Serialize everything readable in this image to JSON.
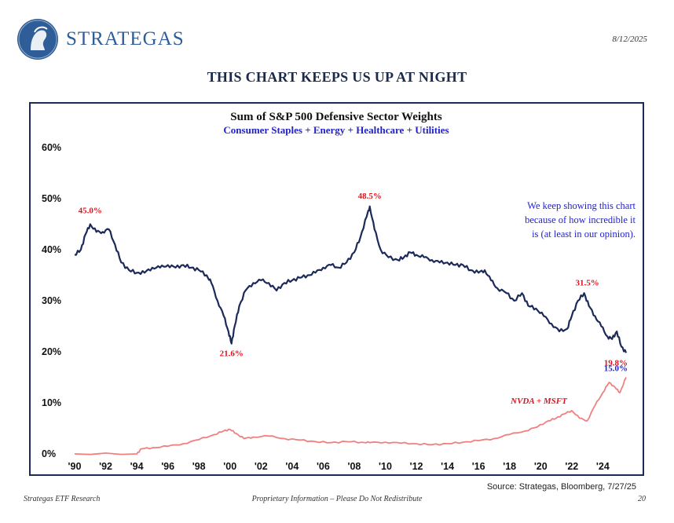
{
  "header": {
    "brand": "STRATEGAS",
    "date": "8/12/2025",
    "headline": "THIS CHART KEEPS US UP AT NIGHT"
  },
  "footer": {
    "source": "Source: Strategas, Bloomberg, 7/27/25",
    "left": "Strategas ETF Research",
    "center": "Proprietary Information – Please Do Not Redistribute",
    "page": "20"
  },
  "colors": {
    "defensive": "#1b2a59",
    "nvda_msft": "#f08080",
    "accent_red": "#e0141e",
    "accent_blue": "#2222cc",
    "brand": "#2f5d97"
  },
  "chart_data": {
    "type": "line",
    "title": "Sum of S&P 500 Defensive Sector Weights",
    "subtitle": "Consumer Staples + Energy + Healthcare + Utilities",
    "ylim": [
      0,
      60
    ],
    "xlim": [
      1990,
      2025.6
    ],
    "y_ticks": [
      "0%",
      "10%",
      "20%",
      "30%",
      "40%",
      "50%",
      "60%"
    ],
    "x_ticks": [
      "'90",
      "'92",
      "'94",
      "'96",
      "'98",
      "'00",
      "'02",
      "'04",
      "'06",
      "'08",
      "'10",
      "'12",
      "'14",
      "'16",
      "'18",
      "'20",
      "'22",
      "'24"
    ],
    "grid": false,
    "series": [
      {
        "name": "Defensive Sectors",
        "x": [
          1990.0,
          1990.4,
          1990.7,
          1991.0,
          1991.4,
          1991.8,
          1992.2,
          1992.6,
          1993.0,
          1993.5,
          1994.0,
          1994.5,
          1995.0,
          1995.5,
          1996.0,
          1996.5,
          1997.0,
          1997.5,
          1998.0,
          1998.5,
          1998.8,
          1999.2,
          1999.6,
          1999.9,
          2000.1,
          2000.3,
          2000.6,
          2001.0,
          2001.5,
          2002.0,
          2002.5,
          2003.0,
          2003.5,
          2004.0,
          2004.5,
          2005.0,
          2005.5,
          2006.0,
          2006.5,
          2007.0,
          2007.5,
          2008.0,
          2008.4,
          2008.8,
          2009.0,
          2009.3,
          2009.7,
          2010.2,
          2010.8,
          2011.2,
          2011.6,
          2012.0,
          2012.5,
          2013.0,
          2013.5,
          2014.0,
          2014.5,
          2015.0,
          2015.5,
          2016.0,
          2016.4,
          2016.8,
          2017.2,
          2017.8,
          2018.3,
          2018.8,
          2019.2,
          2019.7,
          2020.2,
          2020.7,
          2021.2,
          2021.7,
          2022.0,
          2022.4,
          2022.8,
          2023.1,
          2023.5,
          2023.9,
          2024.3,
          2024.6,
          2024.9,
          2025.2,
          2025.5
        ],
        "values": [
          39.0,
          40.0,
          43.0,
          45.0,
          43.5,
          43.5,
          44.0,
          41.0,
          37.5,
          36.0,
          35.5,
          35.5,
          36.5,
          36.5,
          37.0,
          36.5,
          37.0,
          36.5,
          36.0,
          35.0,
          33.5,
          30.0,
          27.0,
          24.0,
          21.6,
          25.0,
          29.0,
          32.0,
          33.5,
          34.0,
          33.5,
          32.0,
          33.5,
          34.0,
          34.5,
          35.0,
          35.5,
          36.5,
          37.0,
          36.5,
          37.5,
          39.5,
          42.5,
          46.5,
          48.5,
          44.0,
          40.0,
          38.5,
          38.0,
          38.5,
          39.5,
          39.0,
          38.5,
          38.0,
          37.5,
          37.5,
          37.0,
          37.0,
          36.0,
          35.5,
          36.0,
          34.0,
          32.5,
          31.5,
          30.0,
          31.5,
          29.0,
          28.5,
          27.0,
          25.5,
          24.0,
          24.5,
          27.0,
          30.0,
          31.5,
          29.0,
          27.0,
          25.0,
          23.0,
          22.5,
          24.0,
          21.0,
          19.8
        ]
      },
      {
        "name": "NVDA + MSFT",
        "x": [
          1990.0,
          1994.0,
          1994.3,
          1995.0,
          1996.0,
          1997.0,
          1998.0,
          1999.0,
          1999.6,
          2000.0,
          2000.4,
          2000.9,
          2001.5,
          2002.5,
          2003.5,
          2004.5,
          2005.5,
          2006.5,
          2007.5,
          2008.5,
          2009.0,
          2010.0,
          2011.0,
          2012.0,
          2013.0,
          2014.0,
          2015.0,
          2016.0,
          2017.0,
          2018.0,
          2019.0,
          2019.8,
          2020.5,
          2021.0,
          2021.5,
          2022.0,
          2022.5,
          2023.0,
          2023.5,
          2024.0,
          2024.4,
          2024.8,
          2025.1,
          2025.5
        ],
        "values": [
          0.0,
          0.0,
          1.0,
          1.2,
          1.5,
          2.0,
          2.8,
          3.8,
          4.5,
          4.8,
          4.0,
          3.0,
          3.3,
          3.5,
          3.0,
          2.7,
          2.4,
          2.2,
          2.4,
          2.3,
          2.2,
          2.3,
          2.1,
          2.0,
          1.8,
          2.0,
          2.3,
          2.6,
          3.0,
          3.8,
          4.5,
          5.3,
          6.5,
          7.0,
          7.8,
          8.5,
          7.0,
          6.5,
          9.5,
          12.0,
          14.0,
          13.0,
          12.0,
          15.0
        ]
      }
    ],
    "annotations": [
      {
        "text": "45.0%",
        "x": 1991.0,
        "y": 45.0,
        "series": "Defensive Sectors"
      },
      {
        "text": "21.6%",
        "x": 2000.1,
        "y": 21.6,
        "series": "Defensive Sectors"
      },
      {
        "text": "48.5%",
        "x": 2009.0,
        "y": 48.5,
        "series": "Defensive Sectors"
      },
      {
        "text": "31.5%",
        "x": 2022.8,
        "y": 31.5,
        "series": "Defensive Sectors"
      },
      {
        "text": "19.8%",
        "x": 2025.5,
        "y": 19.8,
        "series": "Defensive Sectors"
      },
      {
        "text": "15.0%",
        "x": 2025.5,
        "y": 15.0,
        "series": "NVDA + MSFT"
      }
    ],
    "series_label": "NVDA + MSFT",
    "note": [
      "We keep showing this chart",
      "because of how incredible it",
      "is (at least in our opinion)."
    ]
  }
}
